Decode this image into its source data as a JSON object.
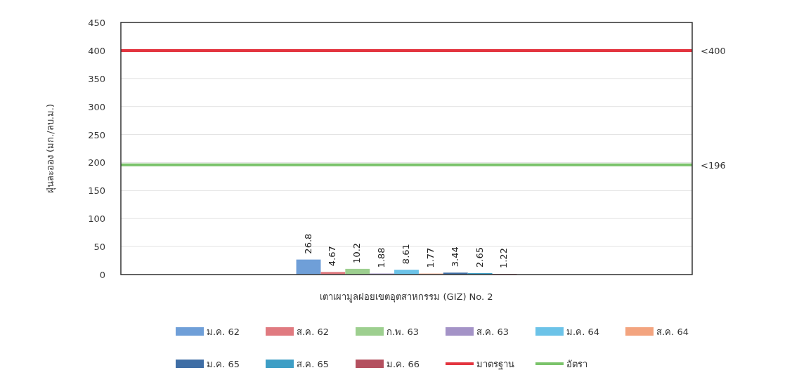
{
  "chart_data": {
    "type": "bar",
    "xlabel": "เตาเผามูลฝอยเขตอุตสาหกรรม (GIZ) No. 2",
    "ylabel": "ฝุ่นละออง (มก./ลบ.ม.)",
    "categories": [
      null
    ],
    "ylim": [
      0,
      450
    ],
    "yticks": [
      0,
      50,
      100,
      150,
      200,
      250,
      300,
      350,
      400,
      450
    ],
    "grid": "y",
    "legend": "bottom",
    "data_labels": true,
    "series": [
      {
        "name": "ม.ค. 62",
        "color": "#6f9fd8",
        "values": [
          26.8
        ]
      },
      {
        "name": "ส.ค. 62",
        "color": "#e07a80",
        "values": [
          4.67
        ]
      },
      {
        "name": "ก.พ. 63",
        "color": "#9dcf8f",
        "values": [
          10.2
        ]
      },
      {
        "name": "ส.ค. 63",
        "color": "#a493c7",
        "values": [
          1.88
        ]
      },
      {
        "name": "ม.ค. 64",
        "color": "#6cc3e8",
        "values": [
          8.61
        ]
      },
      {
        "name": "ส.ค. 64",
        "color": "#f3a47f",
        "values": [
          1.77
        ]
      },
      {
        "name": "ม.ค. 65",
        "color": "#3f6ea5",
        "values": [
          3.44
        ]
      },
      {
        "name": "ส.ค. 65",
        "color": "#3e9ec5",
        "values": [
          2.65
        ]
      },
      {
        "name": "ม.ค. 66",
        "color": "#b4505f",
        "values": [
          1.22
        ]
      }
    ],
    "ref_lines": [
      {
        "axis": "y",
        "value": 400,
        "label": "<400",
        "color": "#e3343f"
      },
      {
        "axis": "y",
        "value": 196,
        "label": "<196",
        "color": "#7ac36a"
      }
    ],
    "annotations": [
      "มาตรฐาน",
      "อัตรา"
    ]
  }
}
